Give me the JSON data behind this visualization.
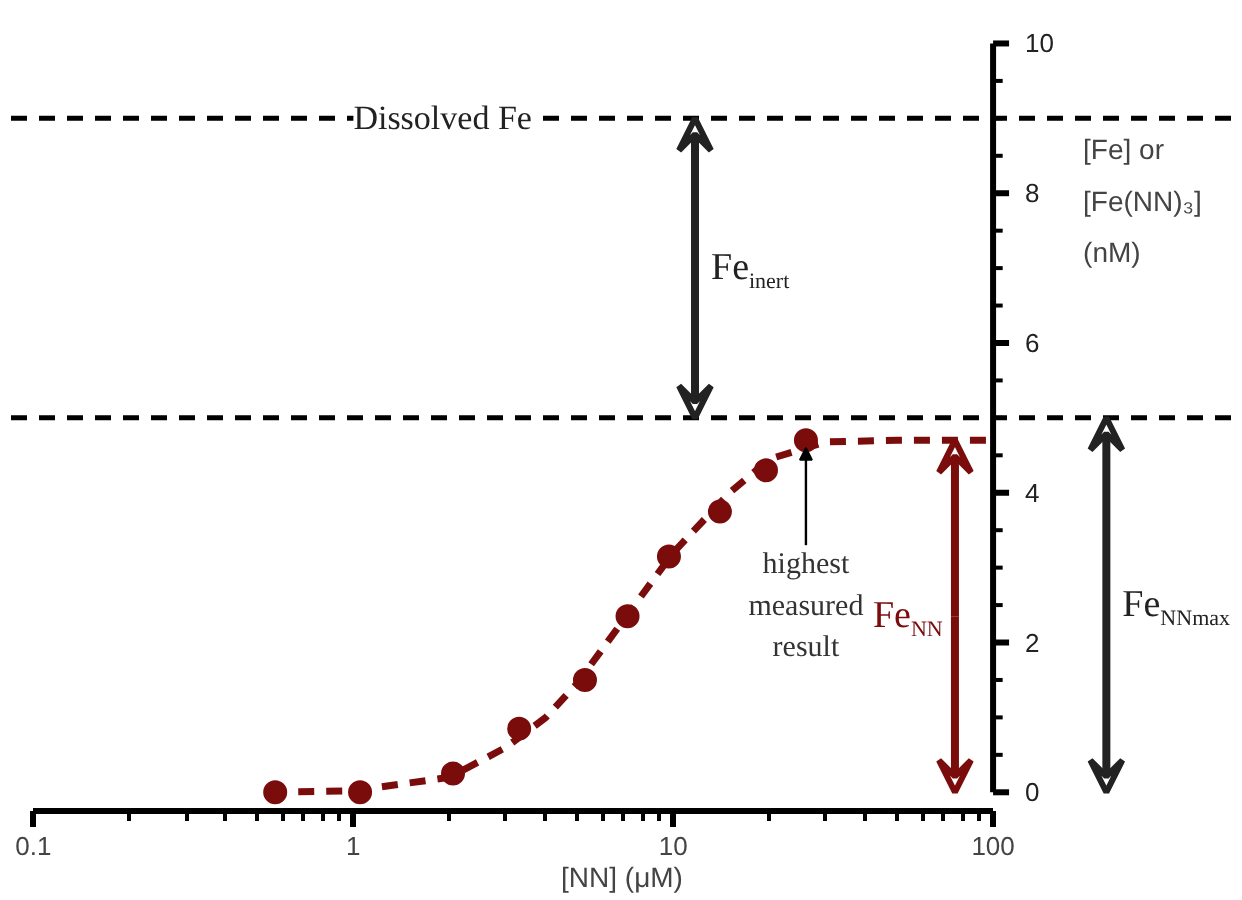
{
  "chart_data": {
    "type": "scatter",
    "xlabel": "[NN] (μM)",
    "ylabel": "[Fe] or\n[Fe(NN)₃]\n(nM)",
    "log": "x",
    "xlim": [
      0.1,
      100
    ],
    "xticks": [
      0.1,
      1,
      10,
      100
    ],
    "ylim": [
      0,
      10
    ],
    "yticks": [
      0,
      2,
      4,
      6,
      8,
      10
    ],
    "grid": false,
    "series": [
      {
        "marker": "circle",
        "color": "#7b0c0c",
        "x": [
          0.57,
          1.05,
          2.05,
          3.3,
          5.3,
          7.2,
          9.7,
          14,
          19.5,
          26
        ],
        "values": [
          0,
          0,
          0.25,
          0.85,
          1.5,
          2.35,
          3.15,
          3.75,
          4.3,
          4.7
        ]
      },
      {
        "type": "line",
        "line_style": "dashed",
        "color": "#7b0c0c",
        "x": [
          0.55,
          1,
          2,
          3,
          4,
          5,
          7,
          10,
          15,
          20,
          30,
          50,
          100
        ],
        "values": [
          0,
          0.02,
          0.2,
          0.6,
          1.0,
          1.45,
          2.3,
          3.2,
          4.0,
          4.45,
          4.68,
          4.7,
          4.7
        ]
      }
    ],
    "ref_lines": [
      {
        "axis": "y",
        "value": 9,
        "label": "Dissolved Fe",
        "color": "#000000",
        "line_style": "dashed"
      },
      {
        "axis": "y",
        "value": 5,
        "color": "#000000",
        "line_style": "dashed"
      }
    ],
    "annotations": [
      {
        "text": "Fe$_{inert}$",
        "x": 11.7,
        "y": 9
      },
      {
        "text": "Fe$_{NN}$",
        "x": 76,
        "y": 4.7
      },
      {
        "text": "Fe$_{NNmax}$",
        "x": 226,
        "y": 5
      },
      {
        "text": "highest\nmeasured\nresult",
        "x": 26,
        "y": 4.7
      }
    ]
  }
}
